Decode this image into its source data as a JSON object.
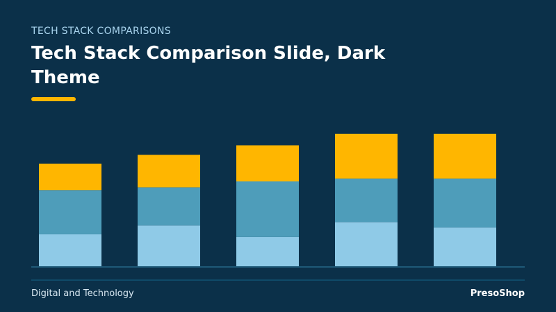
{
  "header": {
    "eyebrow": "TECH STACK COMPARISONS",
    "title": "Tech Stack Comparison Slide, Dark Theme"
  },
  "footer": {
    "left": "Digital and Technology",
    "right": "PresoShop"
  },
  "colors": {
    "background": "#0b3049",
    "accent": "#ffb600",
    "series_bottom": "#8fcae7",
    "series_middle": "#4e9dba",
    "series_top": "#ffb600",
    "baseline": "#1f5a78"
  },
  "chart_data": {
    "type": "bar",
    "stacked": true,
    "categories": [
      "",
      "",
      "",
      "",
      ""
    ],
    "series": [
      {
        "values": [
          47,
          60,
          43,
          65,
          57
        ]
      },
      {
        "values": [
          65,
          56,
          82,
          64,
          72
        ]
      },
      {
        "values": [
          39,
          48,
          53,
          66,
          66
        ]
      }
    ],
    "ylim": [
      0,
      200
    ],
    "grid": false
  }
}
